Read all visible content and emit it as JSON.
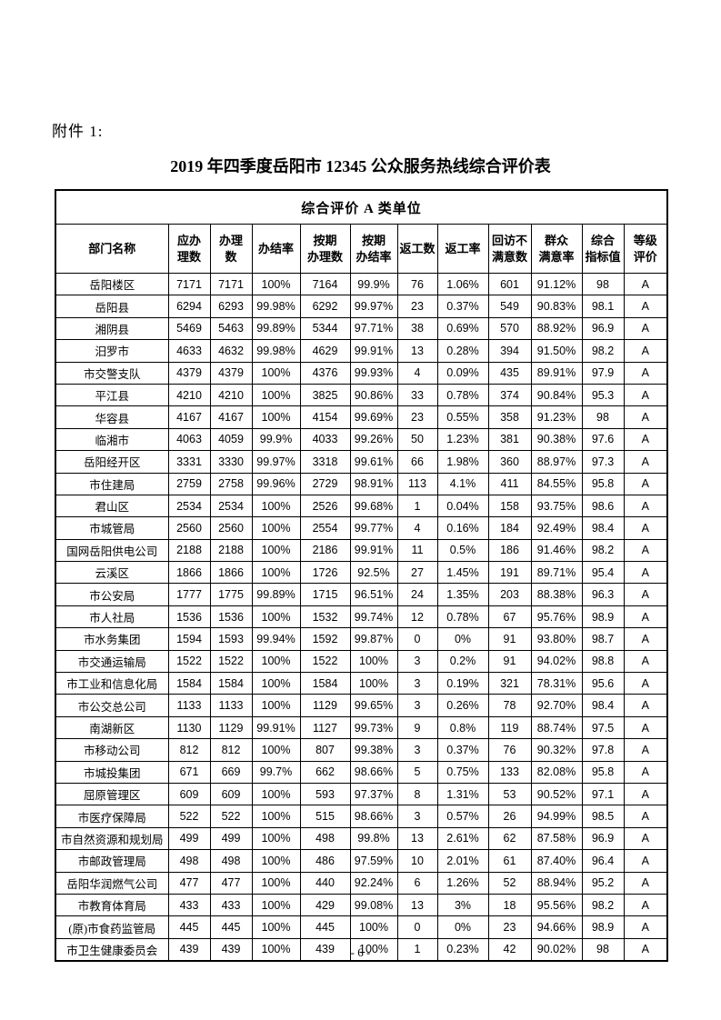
{
  "doc": {
    "attachment_label": "附件 1:",
    "title": "2019 年四季度岳阳市 12345 公众服务热线综合评价表",
    "page_number": "- 6 -"
  },
  "table": {
    "section_title": "综合评价 A 类单位",
    "columns": [
      "部门名称",
      "应办\n理数",
      "办理\n数",
      "办结率",
      "按期\n办理数",
      "按期\n办结率",
      "返工数",
      "返工率",
      "回访不\n满意数",
      "群众\n满意率",
      "综合\n指标值",
      "等级\n评价"
    ],
    "rows": [
      [
        "岳阳楼区",
        "7171",
        "7171",
        "100%",
        "7164",
        "99.9%",
        "76",
        "1.06%",
        "601",
        "91.12%",
        "98",
        "A"
      ],
      [
        "岳阳县",
        "6294",
        "6293",
        "99.98%",
        "6292",
        "99.97%",
        "23",
        "0.37%",
        "549",
        "90.83%",
        "98.1",
        "A"
      ],
      [
        "湘阴县",
        "5469",
        "5463",
        "99.89%",
        "5344",
        "97.71%",
        "38",
        "0.69%",
        "570",
        "88.92%",
        "96.9",
        "A"
      ],
      [
        "汨罗市",
        "4633",
        "4632",
        "99.98%",
        "4629",
        "99.91%",
        "13",
        "0.28%",
        "394",
        "91.50%",
        "98.2",
        "A"
      ],
      [
        "市交警支队",
        "4379",
        "4379",
        "100%",
        "4376",
        "99.93%",
        "4",
        "0.09%",
        "435",
        "89.91%",
        "97.9",
        "A"
      ],
      [
        "平江县",
        "4210",
        "4210",
        "100%",
        "3825",
        "90.86%",
        "33",
        "0.78%",
        "374",
        "90.84%",
        "95.3",
        "A"
      ],
      [
        "华容县",
        "4167",
        "4167",
        "100%",
        "4154",
        "99.69%",
        "23",
        "0.55%",
        "358",
        "91.23%",
        "98",
        "A"
      ],
      [
        "临湘市",
        "4063",
        "4059",
        "99.9%",
        "4033",
        "99.26%",
        "50",
        "1.23%",
        "381",
        "90.38%",
        "97.6",
        "A"
      ],
      [
        "岳阳经开区",
        "3331",
        "3330",
        "99.97%",
        "3318",
        "99.61%",
        "66",
        "1.98%",
        "360",
        "88.97%",
        "97.3",
        "A"
      ],
      [
        "市住建局",
        "2759",
        "2758",
        "99.96%",
        "2729",
        "98.91%",
        "113",
        "4.1%",
        "411",
        "84.55%",
        "95.8",
        "A"
      ],
      [
        "君山区",
        "2534",
        "2534",
        "100%",
        "2526",
        "99.68%",
        "1",
        "0.04%",
        "158",
        "93.75%",
        "98.6",
        "A"
      ],
      [
        "市城管局",
        "2560",
        "2560",
        "100%",
        "2554",
        "99.77%",
        "4",
        "0.16%",
        "184",
        "92.49%",
        "98.4",
        "A"
      ],
      [
        "国网岳阳供电公司",
        "2188",
        "2188",
        "100%",
        "2186",
        "99.91%",
        "11",
        "0.5%",
        "186",
        "91.46%",
        "98.2",
        "A"
      ],
      [
        "云溪区",
        "1866",
        "1866",
        "100%",
        "1726",
        "92.5%",
        "27",
        "1.45%",
        "191",
        "89.71%",
        "95.4",
        "A"
      ],
      [
        "市公安局",
        "1777",
        "1775",
        "99.89%",
        "1715",
        "96.51%",
        "24",
        "1.35%",
        "203",
        "88.38%",
        "96.3",
        "A"
      ],
      [
        "市人社局",
        "1536",
        "1536",
        "100%",
        "1532",
        "99.74%",
        "12",
        "0.78%",
        "67",
        "95.76%",
        "98.9",
        "A"
      ],
      [
        "市水务集团",
        "1594",
        "1593",
        "99.94%",
        "1592",
        "99.87%",
        "0",
        "0%",
        "91",
        "93.80%",
        "98.7",
        "A"
      ],
      [
        "市交通运输局",
        "1522",
        "1522",
        "100%",
        "1522",
        "100%",
        "3",
        "0.2%",
        "91",
        "94.02%",
        "98.8",
        "A"
      ],
      [
        "市工业和信息化局",
        "1584",
        "1584",
        "100%",
        "1584",
        "100%",
        "3",
        "0.19%",
        "321",
        "78.31%",
        "95.6",
        "A"
      ],
      [
        "市公交总公司",
        "1133",
        "1133",
        "100%",
        "1129",
        "99.65%",
        "3",
        "0.26%",
        "78",
        "92.70%",
        "98.4",
        "A"
      ],
      [
        "南湖新区",
        "1130",
        "1129",
        "99.91%",
        "1127",
        "99.73%",
        "9",
        "0.8%",
        "119",
        "88.74%",
        "97.5",
        "A"
      ],
      [
        "市移动公司",
        "812",
        "812",
        "100%",
        "807",
        "99.38%",
        "3",
        "0.37%",
        "76",
        "90.32%",
        "97.8",
        "A"
      ],
      [
        "市城投集团",
        "671",
        "669",
        "99.7%",
        "662",
        "98.66%",
        "5",
        "0.75%",
        "133",
        "82.08%",
        "95.8",
        "A"
      ],
      [
        "屈原管理区",
        "609",
        "609",
        "100%",
        "593",
        "97.37%",
        "8",
        "1.31%",
        "53",
        "90.52%",
        "97.1",
        "A"
      ],
      [
        "市医疗保障局",
        "522",
        "522",
        "100%",
        "515",
        "98.66%",
        "3",
        "0.57%",
        "26",
        "94.99%",
        "98.5",
        "A"
      ],
      [
        "市自然资源和规划局",
        "499",
        "499",
        "100%",
        "498",
        "99.8%",
        "13",
        "2.61%",
        "62",
        "87.58%",
        "96.9",
        "A"
      ],
      [
        "市邮政管理局",
        "498",
        "498",
        "100%",
        "486",
        "97.59%",
        "10",
        "2.01%",
        "61",
        "87.40%",
        "96.4",
        "A"
      ],
      [
        "岳阳华润燃气公司",
        "477",
        "477",
        "100%",
        "440",
        "92.24%",
        "6",
        "1.26%",
        "52",
        "88.94%",
        "95.2",
        "A"
      ],
      [
        "市教育体育局",
        "433",
        "433",
        "100%",
        "429",
        "99.08%",
        "13",
        "3%",
        "18",
        "95.56%",
        "98.2",
        "A"
      ],
      [
        "(原)市食药监管局",
        "445",
        "445",
        "100%",
        "445",
        "100%",
        "0",
        "0%",
        "23",
        "94.66%",
        "98.9",
        "A"
      ],
      [
        "市卫生健康委员会",
        "439",
        "439",
        "100%",
        "439",
        "100%",
        "1",
        "0.23%",
        "42",
        "90.02%",
        "98",
        "A"
      ]
    ]
  }
}
